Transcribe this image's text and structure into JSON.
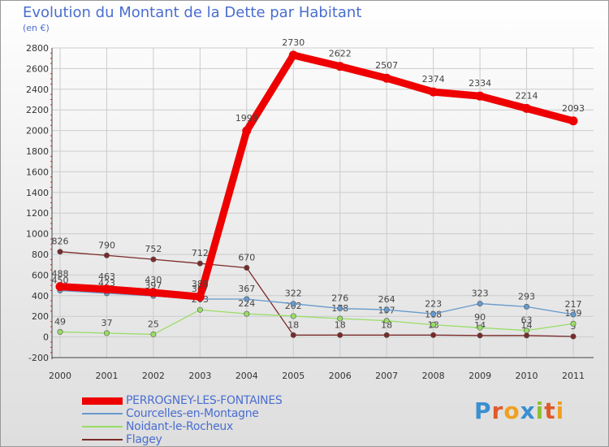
{
  "chart_data": {
    "type": "line",
    "title": "Evolution du Montant de la Dette par Habitant",
    "subtitle": "(en €)",
    "x": [
      "2000",
      "2001",
      "2002",
      "2003",
      "2004",
      "2005",
      "2006",
      "2007",
      "2008",
      "2009",
      "2010",
      "2011"
    ],
    "ylim": [
      -200,
      2800
    ],
    "yticks": [
      -200,
      0,
      200,
      400,
      600,
      800,
      1000,
      1200,
      1400,
      1600,
      1800,
      2000,
      2200,
      2400,
      2600,
      2800
    ],
    "grid": true,
    "series": [
      {
        "name": "Flagey",
        "color": "#7a2a2a",
        "values": [
          826,
          790,
          752,
          712,
          670,
          18,
          18,
          18,
          18,
          14,
          14,
          5
        ],
        "labels": [
          "826",
          "790",
          "752",
          "712",
          "670",
          "18",
          "18",
          "18",
          "18",
          "14",
          "14",
          "5"
        ]
      },
      {
        "name": "Noidant-le-Rocheux",
        "color": "#99dd66",
        "values": [
          49,
          37,
          25,
          263,
          224,
          202,
          178,
          157,
          118,
          90,
          63,
          129
        ],
        "labels": [
          "49",
          "37",
          "25",
          "263",
          "224",
          "202",
          "178",
          "157",
          "118",
          "90",
          "63",
          "129"
        ]
      },
      {
        "name": "Courcelles-en-Montagne",
        "color": "#6699cc",
        "values": [
          450,
          423,
          397,
          367,
          367,
          322,
          276,
          264,
          223,
          323,
          293,
          217
        ],
        "labels": [
          "450",
          "423",
          "397",
          "367",
          "367",
          "322",
          "276",
          "264",
          "223",
          "323",
          "293",
          "217"
        ]
      },
      {
        "name": "PERROGNEY-LES-FONTAINES",
        "color": "#ee0000",
        "values": [
          488,
          463,
          430,
          389,
          1998,
          2730,
          2622,
          2507,
          2374,
          2334,
          2214,
          2093
        ],
        "labels": [
          "488",
          "463",
          "430",
          "389",
          "1998",
          "2730",
          "2622",
          "2507",
          "2374",
          "2334",
          "2214",
          "2093"
        ]
      }
    ],
    "legend": [
      "PERROGNEY-LES-FONTAINES",
      "Courcelles-en-Montagne",
      "Noidant-le-Rocheux",
      "Flagey"
    ],
    "legend_position": "bottom-left"
  },
  "logo": {
    "letters": [
      "P",
      "r",
      "o",
      "x",
      "i",
      "t",
      "i"
    ],
    "colors": [
      "#3a8fd0",
      "#e05a2a",
      "#f0a020",
      "#3a8fd0",
      "#90c030",
      "#e05a2a",
      "#f0a020"
    ]
  }
}
